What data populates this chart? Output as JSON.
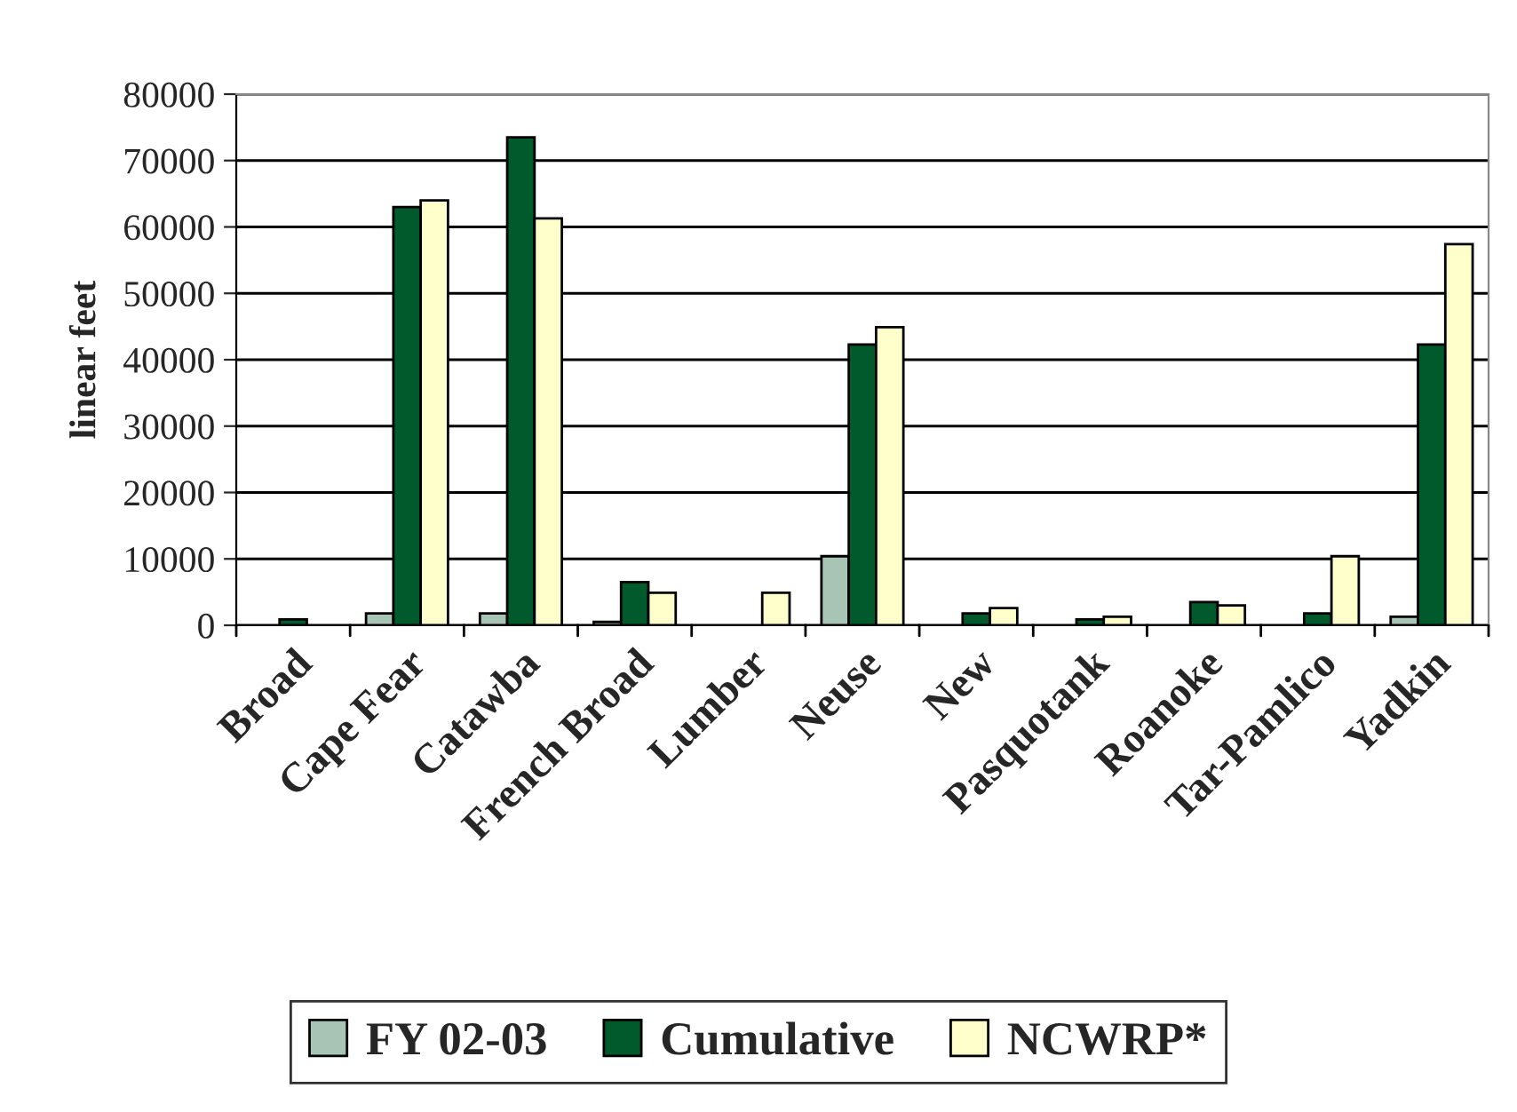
{
  "chart_data": {
    "type": "bar",
    "ylabel": "linear feet",
    "categories": [
      "Broad",
      "Cape Fear",
      "Catawba",
      "French Broad",
      "Lumber",
      "Neuse",
      "New",
      "Pasquotank",
      "Roanoke",
      "Tar-Pamlico",
      "Yadkin"
    ],
    "series": [
      {
        "name": "FY 02-03",
        "color": "#a8c4b4",
        "values": [
          null,
          1800,
          1800,
          500,
          null,
          10400,
          null,
          null,
          null,
          null,
          1300
        ]
      },
      {
        "name": "Cumulative",
        "color": "#005a2b",
        "values": [
          900,
          63000,
          73500,
          6500,
          null,
          42300,
          1800,
          900,
          3500,
          1800,
          42300
        ]
      },
      {
        "name": "NCWRP*",
        "color": "#ffffcc",
        "values": [
          null,
          64000,
          61300,
          4900,
          4900,
          44900,
          2600,
          1300,
          3000,
          10400,
          57400
        ]
      }
    ],
    "ylim": [
      0,
      80000
    ],
    "yticks": [
      0,
      10000,
      20000,
      30000,
      40000,
      50000,
      60000,
      70000,
      80000
    ],
    "grid": "y",
    "legend": "bottom"
  }
}
